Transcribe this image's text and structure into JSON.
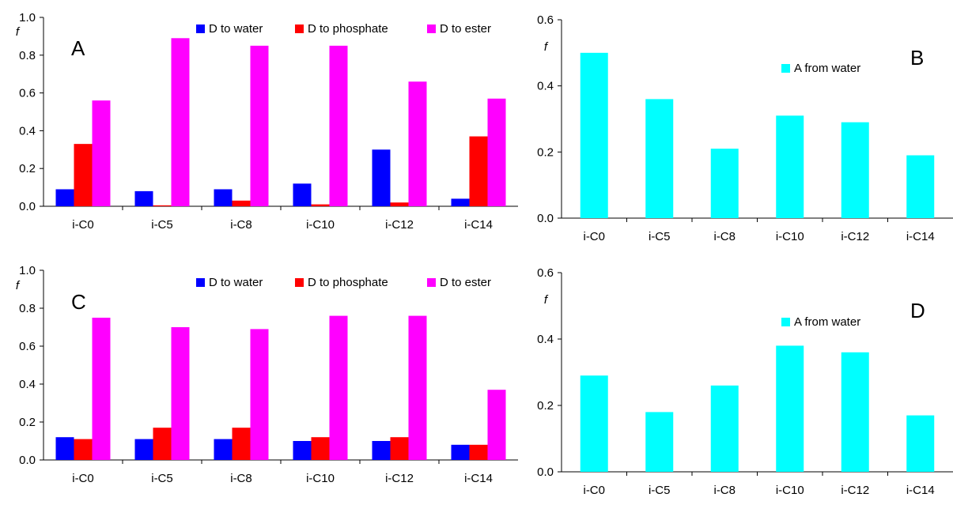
{
  "colors": {
    "water": "#0000ff",
    "phosphate": "#ff0000",
    "ester": "#ff00ff",
    "acceptor": "#00ffff"
  },
  "chart_data": [
    {
      "panel": "A",
      "type": "bar",
      "ylabel": "f",
      "ylim": [
        0,
        1.0
      ],
      "yticks": [
        "0.0",
        "0.2",
        "0.4",
        "0.6",
        "0.8",
        "1.0"
      ],
      "categories": [
        "i-C0",
        "i-C5",
        "i-C8",
        "i-C10",
        "i-C12",
        "i-C14"
      ],
      "legend_position": "top",
      "series": [
        {
          "name": "D to water",
          "color": "#0000ff",
          "values": [
            0.09,
            0.08,
            0.09,
            0.12,
            0.3,
            0.04
          ]
        },
        {
          "name": "D to phosphate",
          "color": "#ff0000",
          "values": [
            0.33,
            0.005,
            0.03,
            0.01,
            0.02,
            0.37
          ]
        },
        {
          "name": "D to ester",
          "color": "#ff00ff",
          "values": [
            0.56,
            0.89,
            0.85,
            0.85,
            0.66,
            0.57
          ]
        }
      ]
    },
    {
      "panel": "B",
      "type": "bar",
      "ylabel": "f",
      "ylim": [
        0,
        0.6
      ],
      "yticks": [
        "0.0",
        "0.2",
        "0.4",
        "0.6"
      ],
      "categories": [
        "i-C0",
        "i-C5",
        "i-C8",
        "i-C10",
        "i-C12",
        "i-C14"
      ],
      "legend_position": "top-center",
      "series": [
        {
          "name": "A from water",
          "color": "#00ffff",
          "values": [
            0.5,
            0.36,
            0.21,
            0.31,
            0.29,
            0.19
          ]
        }
      ]
    },
    {
      "panel": "C",
      "type": "bar",
      "ylabel": "f",
      "ylim": [
        0,
        1.0
      ],
      "yticks": [
        "0.0",
        "0.2",
        "0.4",
        "0.6",
        "0.8",
        "1.0"
      ],
      "categories": [
        "i-C0",
        "i-C5",
        "i-C8",
        "i-C10",
        "i-C12",
        "i-C14"
      ],
      "legend_position": "top",
      "series": [
        {
          "name": "D to water",
          "color": "#0000ff",
          "values": [
            0.12,
            0.11,
            0.11,
            0.1,
            0.1,
            0.08
          ]
        },
        {
          "name": "D to phosphate",
          "color": "#ff0000",
          "values": [
            0.11,
            0.17,
            0.17,
            0.12,
            0.12,
            0.08
          ]
        },
        {
          "name": "D to ester",
          "color": "#ff00ff",
          "values": [
            0.75,
            0.7,
            0.69,
            0.76,
            0.76,
            0.37
          ]
        }
      ]
    },
    {
      "panel": "D",
      "type": "bar",
      "ylabel": "f",
      "ylim": [
        0,
        0.6
      ],
      "yticks": [
        "0.0",
        "0.2",
        "0.4",
        "0.6"
      ],
      "categories": [
        "i-C0",
        "i-C5",
        "i-C8",
        "i-C10",
        "i-C12",
        "i-C14"
      ],
      "legend_position": "top-center",
      "series": [
        {
          "name": "A from water",
          "color": "#00ffff",
          "values": [
            0.29,
            0.18,
            0.26,
            0.38,
            0.36,
            0.17
          ]
        }
      ]
    }
  ]
}
